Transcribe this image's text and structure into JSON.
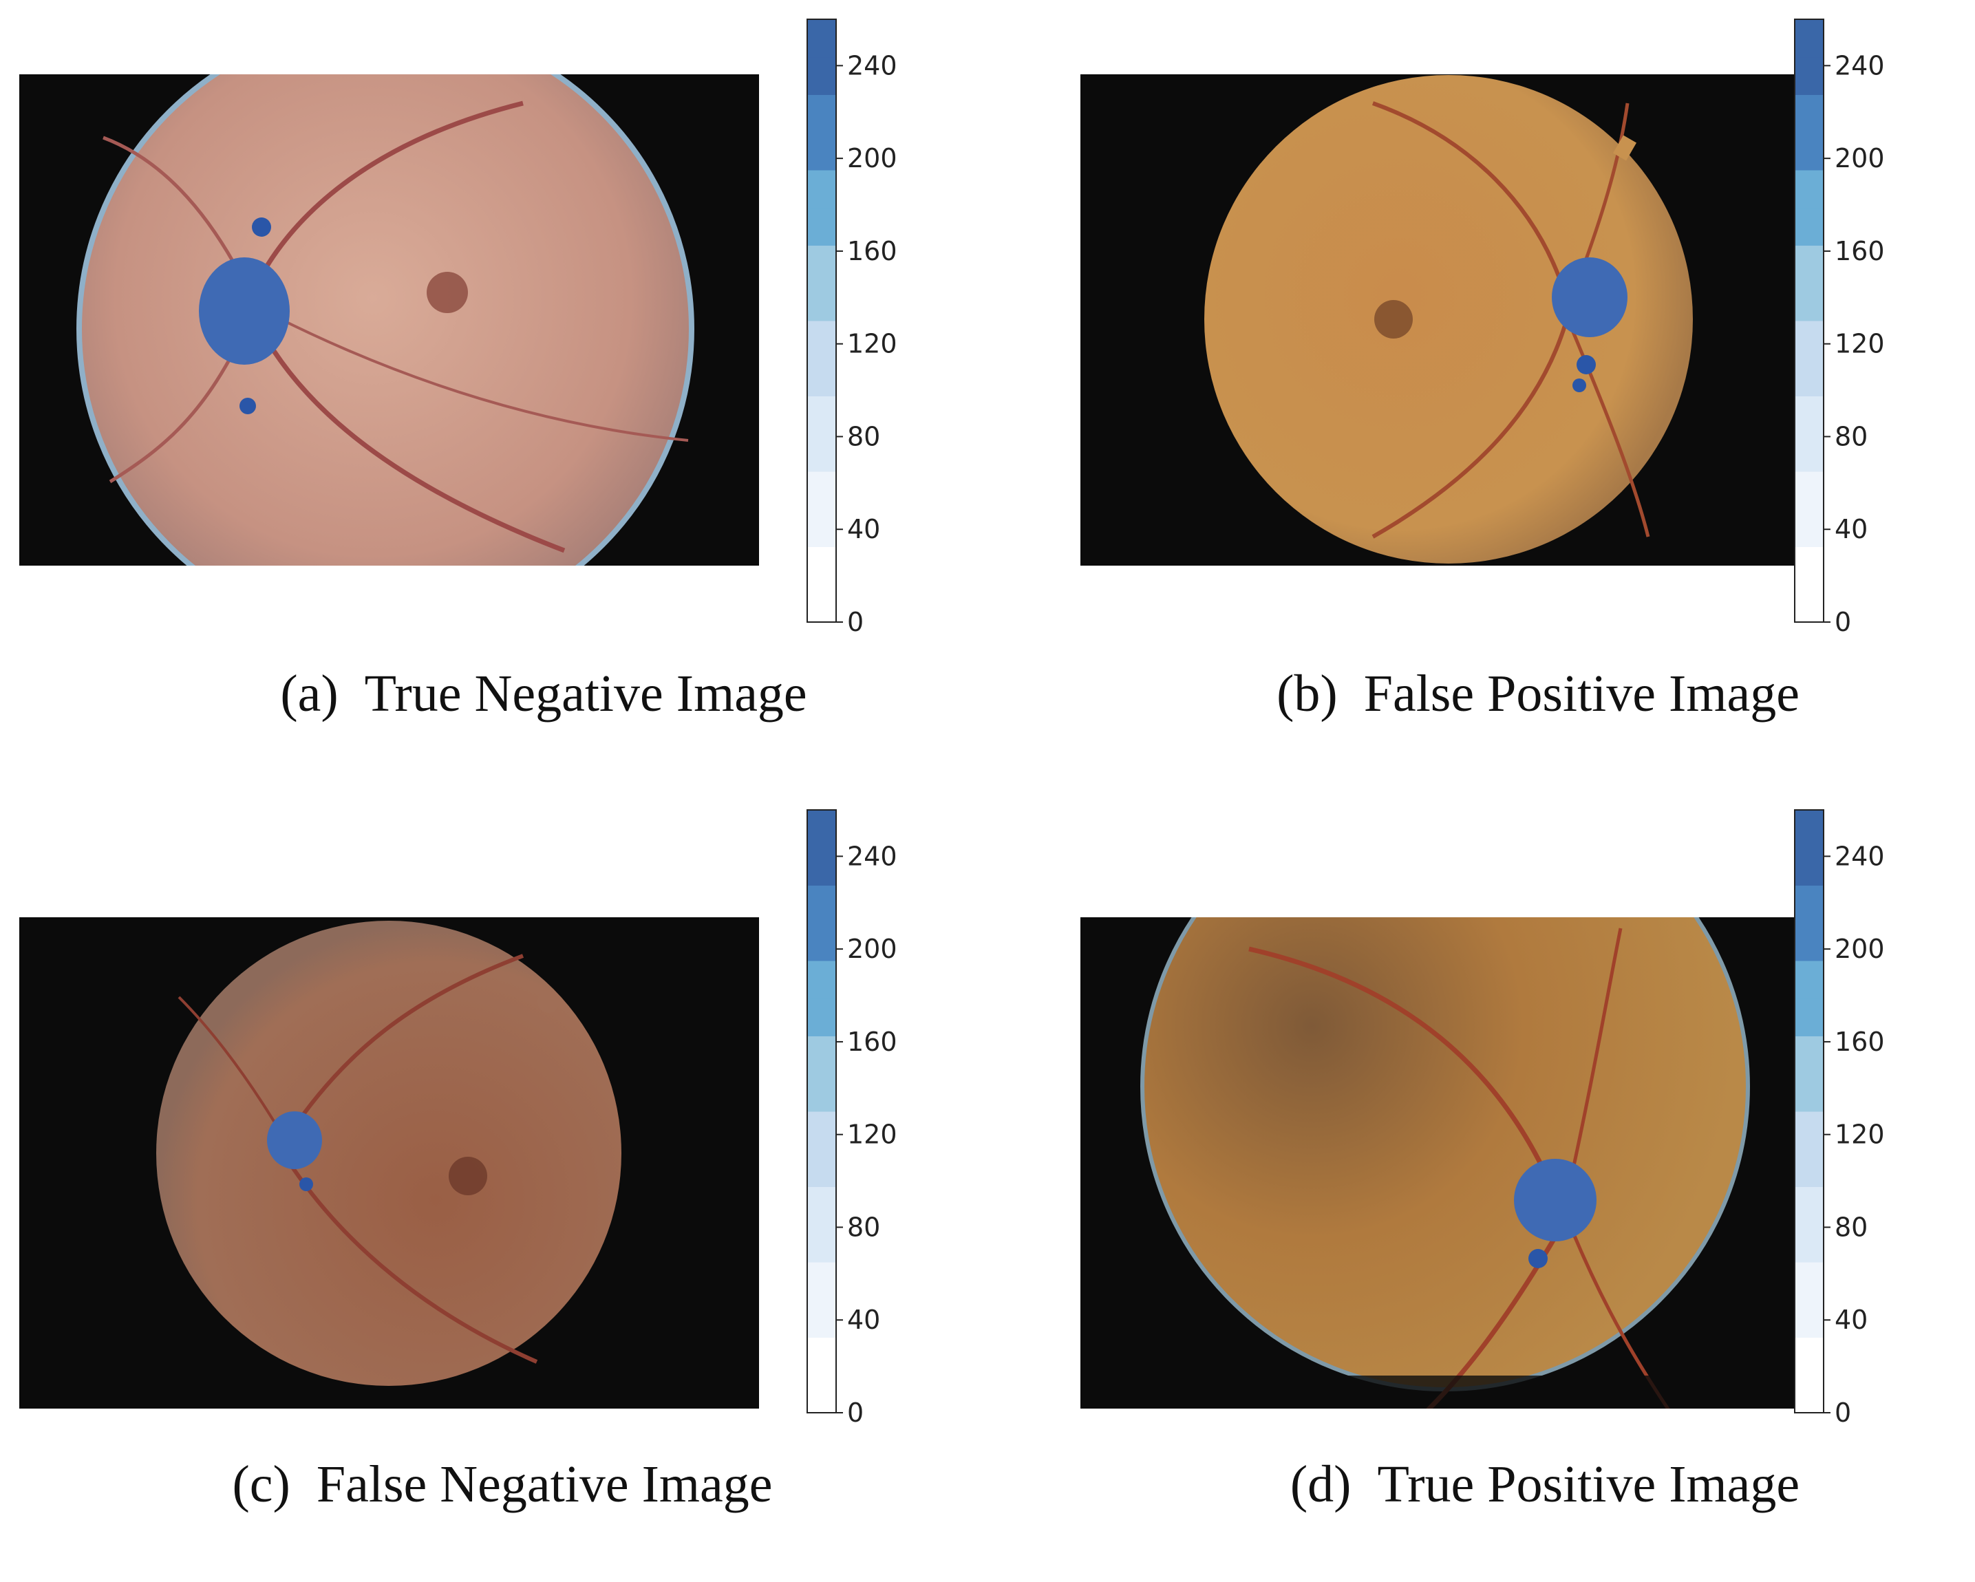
{
  "colorbar": {
    "ticks": [
      "0",
      "40",
      "80",
      "120",
      "160",
      "200",
      "240"
    ],
    "min": 0,
    "max": 260,
    "colormap": [
      "#ffffff",
      "#eef4fb",
      "#dbe9f6",
      "#c6dbef",
      "#9ecae1",
      "#6baed6",
      "#4a84c0",
      "#3a67a8"
    ]
  },
  "panels": [
    {
      "id": "a",
      "label": "(a)",
      "caption": "True Negative Image",
      "fundus_tone": "#c79a88",
      "rim_tone": "#8fb0c8",
      "disc_side": "left",
      "disc_tone": "#3f6ab4"
    },
    {
      "id": "b",
      "label": "(b)",
      "caption": "False Positive Image",
      "fundus_tone": "#c48a4e",
      "rim_tone": "#000000",
      "disc_side": "right",
      "disc_tone": "#3f6ab4"
    },
    {
      "id": "c",
      "label": "(c)",
      "caption": "False Negative Image",
      "fundus_tone": "#9c6a54",
      "rim_tone": "#000000",
      "disc_side": "left",
      "disc_tone": "#3f6ab4"
    },
    {
      "id": "d",
      "label": "(d)",
      "caption": "True Positive Image",
      "fundus_tone": "#b7834a",
      "rim_tone": "#7f9aa8",
      "disc_side": "right",
      "disc_tone": "#3f6ab4"
    }
  ]
}
